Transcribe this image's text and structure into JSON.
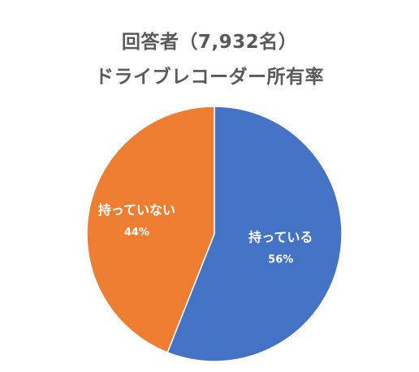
{
  "title": {
    "line1": "回答者（7,932名）",
    "line2": "ドライブレコーダー所有率"
  },
  "chart_data": {
    "type": "pie",
    "title": "回答者（7,932名） ドライブレコーダー所有率",
    "start_angle_deg": 0,
    "direction": "clockwise",
    "slices": [
      {
        "label": "持っている",
        "value": 56,
        "value_label": "56%",
        "color": "#4472C4"
      },
      {
        "label": "持っていない",
        "value": 44,
        "value_label": "44%",
        "color": "#ED7D31"
      }
    ],
    "legend": "none"
  }
}
